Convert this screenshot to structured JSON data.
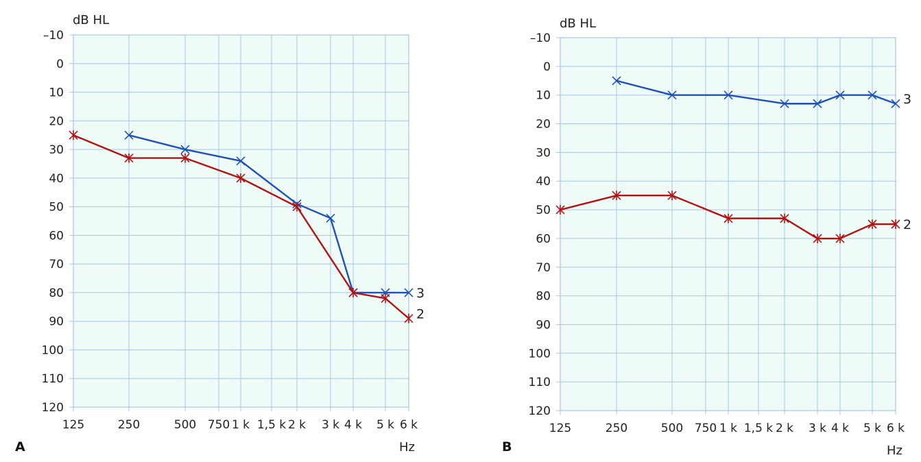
{
  "colors": {
    "plot_bg": "#eefbf6",
    "grid": "#a9c4e8",
    "series_3": "#1f4fb8",
    "series_2": "#b31212"
  },
  "chart_data": [
    {
      "type": "line",
      "panel": "A",
      "ylabel": "dB HL",
      "xlabel": "Hz",
      "y_axis": "reversed",
      "ylim": [
        -10,
        120
      ],
      "y_ticks": [
        "-10",
        "0",
        "10",
        "20",
        "30",
        "40",
        "50",
        "60",
        "70",
        "80",
        "90",
        "100",
        "110",
        "120"
      ],
      "x_ticks": [
        {
          "v": 125,
          "label": "125"
        },
        {
          "v": 250,
          "label": "250"
        },
        {
          "v": 500,
          "label": "500"
        },
        {
          "v": 750,
          "label": "750"
        },
        {
          "v": 1000,
          "label": "1 k"
        },
        {
          "v": 1500,
          "label": "1,5 k"
        },
        {
          "v": 2000,
          "label": "2 k"
        },
        {
          "v": 3000,
          "label": "3 k"
        },
        {
          "v": 4000,
          "label": "4 k"
        },
        {
          "v": 5000,
          "label": "5 k"
        },
        {
          "v": 6000,
          "label": "6 k"
        }
      ],
      "grid": true,
      "series": [
        {
          "name": "3",
          "marker": "x",
          "color": "#1f4fb8",
          "x": [
            250,
            500,
            1000,
            2000,
            3000,
            4000,
            5000,
            6000
          ],
          "values": [
            25,
            30,
            34,
            49,
            54,
            80,
            80,
            80
          ]
        },
        {
          "name": "2",
          "marker": "asterisk",
          "color": "#b31212",
          "x": [
            125,
            250,
            500,
            1000,
            2000,
            4000,
            5000,
            6000
          ],
          "values": [
            25,
            33,
            33,
            40,
            50,
            80,
            82,
            89
          ]
        }
      ]
    },
    {
      "type": "line",
      "panel": "B",
      "ylabel": "dB HL",
      "xlabel": "Hz",
      "y_axis": "reversed",
      "ylim": [
        -10,
        120
      ],
      "y_ticks": [
        "-10",
        "0",
        "10",
        "20",
        "30",
        "40",
        "50",
        "60",
        "70",
        "80",
        "90",
        "100",
        "110",
        "120"
      ],
      "x_ticks": [
        {
          "v": 125,
          "label": "125"
        },
        {
          "v": 250,
          "label": "250"
        },
        {
          "v": 500,
          "label": "500"
        },
        {
          "v": 750,
          "label": "750"
        },
        {
          "v": 1000,
          "label": "1 k"
        },
        {
          "v": 1500,
          "label": "1,5 k"
        },
        {
          "v": 2000,
          "label": "2 k"
        },
        {
          "v": 3000,
          "label": "3 k"
        },
        {
          "v": 4000,
          "label": "4 k"
        },
        {
          "v": 5000,
          "label": "5 k"
        },
        {
          "v": 6000,
          "label": "6 k"
        }
      ],
      "grid": true,
      "series": [
        {
          "name": "3",
          "marker": "x",
          "color": "#1f4fb8",
          "x": [
            250,
            500,
            1000,
            2000,
            3000,
            4000,
            5000,
            6000
          ],
          "values": [
            5,
            10,
            10,
            13,
            13,
            10,
            10,
            13
          ]
        },
        {
          "name": "2",
          "marker": "asterisk",
          "color": "#b31212",
          "x": [
            125,
            250,
            500,
            1000,
            2000,
            3000,
            4000,
            5000,
            6000
          ],
          "values": [
            50,
            45,
            45,
            53,
            53,
            60,
            60,
            55,
            55
          ]
        }
      ]
    }
  ]
}
